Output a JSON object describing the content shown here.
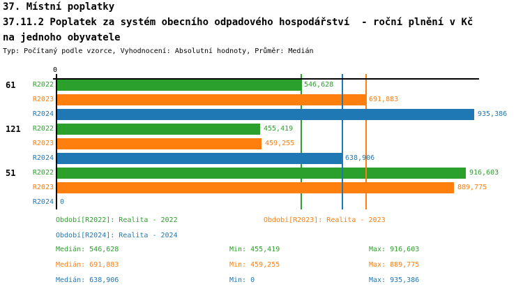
{
  "header": {
    "line1": "37. Místní poplatky",
    "line2": "37.11.2 Poplatek za systém obecního odpadového hospodářství  - roční plnění v Kč",
    "line3": "na jednoho obyvatele",
    "meta": "Typ: Počítaný podle vzorce, Vyhodnocení: Absolutní hodnoty, Průměr: Medián"
  },
  "chart_data": {
    "type": "bar",
    "orientation": "horizontal",
    "title": "37.11.2 Poplatek za systém obecního odpadového hospodářství - roční plnění v Kč na jednoho obyvatele",
    "x_axis": {
      "origin_label": "0",
      "min": 0,
      "max_plotted": 935386
    },
    "grid": false,
    "legend_position": "bottom",
    "categories": [
      "61",
      "121",
      "51"
    ],
    "series": [
      {
        "name": "R2022",
        "color": "#2ca02c",
        "median": 546628,
        "values": [
          546628,
          455419,
          916603
        ],
        "value_labels": [
          "546,628",
          "455,419",
          "916,603"
        ]
      },
      {
        "name": "R2023",
        "color": "#ff7f0e",
        "median": 691883,
        "values": [
          691883,
          459255,
          889775
        ],
        "value_labels": [
          "691,883",
          "459,255",
          "889,775"
        ]
      },
      {
        "name": "R2024",
        "color": "#1f77b4",
        "median": 638906,
        "values": [
          935386,
          638906,
          0
        ],
        "value_labels": [
          "935,386",
          "638,906",
          "0"
        ]
      }
    ],
    "median_lines_shown": true
  },
  "legend": {
    "r2022": "Období[R2022]: Realita - 2022",
    "r2023": "Období[R2023]: Realita - 2023",
    "r2024": "Období[R2024]: Realita - 2024"
  },
  "stats": [
    {
      "series": "R2022",
      "median": "Medián: 546,628",
      "min": "Min: 455,419",
      "max": "Max: 916,603"
    },
    {
      "series": "R2023",
      "median": "Medián: 691,883",
      "min": "Min: 459,255",
      "max": "Max: 889,775"
    },
    {
      "series": "R2024",
      "median": "Medián: 638,906",
      "min": "Min: 0",
      "max": "Max: 935,386"
    }
  ],
  "colors": {
    "r2022": "#2ca02c",
    "r2023": "#ff7f0e",
    "r2024": "#1f77b4",
    "axis": "#000000",
    "background": "#ffffff"
  }
}
